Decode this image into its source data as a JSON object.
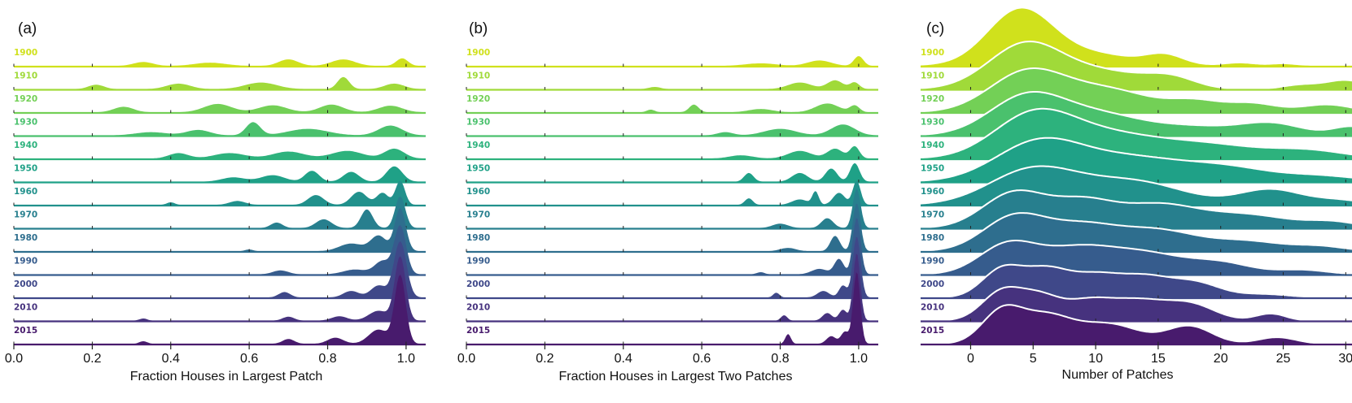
{
  "colors": [
    "#d0e11c",
    "#a0da39",
    "#73d056",
    "#4ac16d",
    "#2db27d",
    "#1fa187",
    "#21918c",
    "#277f8e",
    "#2e6e8e",
    "#365c8d",
    "#3f4889",
    "#46327e",
    "#481b6d"
  ],
  "chart_data": [
    {
      "type": "ridgeline",
      "panel": "(a)",
      "xlabel": "Fraction Houses in Largest Patch",
      "xlim": [
        0.0,
        1.05
      ],
      "xticks": [
        "0.0",
        "0.2",
        "0.4",
        "0.6",
        "0.8",
        "1.0"
      ],
      "tick_values": [
        0.0,
        0.2,
        0.4,
        0.6,
        0.8,
        1.0
      ],
      "series": [
        {
          "name": "1900",
          "peaks": [
            [
              0.33,
              0.025,
              0.18
            ],
            [
              0.5,
              0.04,
              0.15
            ],
            [
              0.7,
              0.025,
              0.3
            ],
            [
              0.84,
              0.03,
              0.3
            ],
            [
              0.99,
              0.015,
              0.35
            ]
          ]
        },
        {
          "name": "1910",
          "peaks": [
            [
              0.21,
              0.02,
              0.2
            ],
            [
              0.42,
              0.03,
              0.25
            ],
            [
              0.63,
              0.04,
              0.3
            ],
            [
              0.84,
              0.015,
              0.55
            ],
            [
              0.97,
              0.025,
              0.25
            ]
          ]
        },
        {
          "name": "1920",
          "peaks": [
            [
              0.28,
              0.025,
              0.25
            ],
            [
              0.52,
              0.035,
              0.38
            ],
            [
              0.66,
              0.035,
              0.32
            ],
            [
              0.81,
              0.03,
              0.35
            ],
            [
              0.96,
              0.03,
              0.3
            ]
          ]
        },
        {
          "name": "1930",
          "peaks": [
            [
              0.35,
              0.04,
              0.15
            ],
            [
              0.47,
              0.03,
              0.25
            ],
            [
              0.61,
              0.018,
              0.6
            ],
            [
              0.75,
              0.05,
              0.3
            ],
            [
              0.96,
              0.03,
              0.45
            ]
          ]
        },
        {
          "name": "1940",
          "peaks": [
            [
              0.42,
              0.025,
              0.25
            ],
            [
              0.55,
              0.04,
              0.25
            ],
            [
              0.7,
              0.04,
              0.32
            ],
            [
              0.85,
              0.04,
              0.35
            ],
            [
              0.97,
              0.025,
              0.45
            ]
          ]
        },
        {
          "name": "1950",
          "peaks": [
            [
              0.56,
              0.03,
              0.2
            ],
            [
              0.66,
              0.03,
              0.3
            ],
            [
              0.76,
              0.018,
              0.5
            ],
            [
              0.86,
              0.02,
              0.45
            ],
            [
              0.97,
              0.02,
              0.7
            ]
          ]
        },
        {
          "name": "1960",
          "peaks": [
            [
              0.4,
              0.01,
              0.12
            ],
            [
              0.57,
              0.02,
              0.18
            ],
            [
              0.77,
              0.02,
              0.45
            ],
            [
              0.88,
              0.02,
              0.6
            ],
            [
              0.94,
              0.015,
              0.55
            ],
            [
              0.985,
              0.012,
              1.1
            ]
          ]
        },
        {
          "name": "1970",
          "peaks": [
            [
              0.67,
              0.015,
              0.25
            ],
            [
              0.79,
              0.02,
              0.4
            ],
            [
              0.9,
              0.015,
              0.85
            ],
            [
              0.985,
              0.013,
              1.45
            ]
          ]
        },
        {
          "name": "1980",
          "peaks": [
            [
              0.6,
              0.01,
              0.08
            ],
            [
              0.86,
              0.03,
              0.35
            ],
            [
              0.93,
              0.02,
              0.7
            ],
            [
              0.985,
              0.014,
              1.95
            ]
          ]
        },
        {
          "name": "1990",
          "peaks": [
            [
              0.68,
              0.02,
              0.18
            ],
            [
              0.87,
              0.03,
              0.22
            ],
            [
              0.94,
              0.02,
              0.6
            ],
            [
              0.985,
              0.015,
              2.2
            ]
          ]
        },
        {
          "name": "2000",
          "peaks": [
            [
              0.69,
              0.015,
              0.25
            ],
            [
              0.86,
              0.02,
              0.3
            ],
            [
              0.93,
              0.02,
              0.55
            ],
            [
              0.985,
              0.016,
              2.55
            ]
          ]
        },
        {
          "name": "2010",
          "peaks": [
            [
              0.33,
              0.01,
              0.1
            ],
            [
              0.7,
              0.015,
              0.18
            ],
            [
              0.83,
              0.02,
              0.2
            ],
            [
              0.93,
              0.025,
              0.45
            ],
            [
              0.985,
              0.014,
              2.9
            ]
          ]
        },
        {
          "name": "2015",
          "peaks": [
            [
              0.33,
              0.01,
              0.12
            ],
            [
              0.7,
              0.015,
              0.22
            ],
            [
              0.82,
              0.02,
              0.28
            ],
            [
              0.93,
              0.025,
              0.65
            ],
            [
              0.985,
              0.014,
              3.1
            ]
          ]
        }
      ]
    },
    {
      "type": "ridgeline",
      "panel": "(b)",
      "xlabel": "Fraction Houses in Largest Two Patches",
      "xlim": [
        0.0,
        1.05
      ],
      "xticks": [
        "0.0",
        "0.2",
        "0.4",
        "0.6",
        "0.8",
        "1.0"
      ],
      "tick_values": [
        0.0,
        0.2,
        0.4,
        0.6,
        0.8,
        1.0
      ],
      "series": [
        {
          "name": "1900",
          "peaks": [
            [
              0.75,
              0.04,
              0.12
            ],
            [
              0.9,
              0.03,
              0.25
            ],
            [
              1.0,
              0.012,
              0.45
            ]
          ]
        },
        {
          "name": "1910",
          "peaks": [
            [
              0.48,
              0.015,
              0.1
            ],
            [
              0.85,
              0.03,
              0.3
            ],
            [
              0.94,
              0.02,
              0.4
            ],
            [
              0.99,
              0.012,
              0.3
            ]
          ]
        },
        {
          "name": "1920",
          "peaks": [
            [
              0.47,
              0.01,
              0.12
            ],
            [
              0.58,
              0.012,
              0.35
            ],
            [
              0.75,
              0.03,
              0.15
            ],
            [
              0.92,
              0.03,
              0.4
            ],
            [
              0.99,
              0.012,
              0.3
            ]
          ]
        },
        {
          "name": "1930",
          "peaks": [
            [
              0.66,
              0.02,
              0.15
            ],
            [
              0.8,
              0.04,
              0.3
            ],
            [
              0.96,
              0.03,
              0.5
            ]
          ]
        },
        {
          "name": "1940",
          "peaks": [
            [
              0.7,
              0.03,
              0.15
            ],
            [
              0.85,
              0.03,
              0.35
            ],
            [
              0.94,
              0.02,
              0.45
            ],
            [
              0.99,
              0.012,
              0.55
            ]
          ]
        },
        {
          "name": "1950",
          "peaks": [
            [
              0.72,
              0.012,
              0.4
            ],
            [
              0.85,
              0.02,
              0.4
            ],
            [
              0.93,
              0.015,
              0.6
            ],
            [
              0.99,
              0.012,
              0.85
            ]
          ]
        },
        {
          "name": "1960",
          "peaks": [
            [
              0.72,
              0.01,
              0.3
            ],
            [
              0.85,
              0.02,
              0.25
            ],
            [
              0.89,
              0.008,
              0.6
            ],
            [
              0.95,
              0.015,
              0.55
            ],
            [
              0.995,
              0.01,
              1.1
            ]
          ]
        },
        {
          "name": "1970",
          "peaks": [
            [
              0.8,
              0.02,
              0.2
            ],
            [
              0.92,
              0.015,
              0.45
            ],
            [
              0.995,
              0.01,
              1.8
            ]
          ]
        },
        {
          "name": "1980",
          "peaks": [
            [
              0.82,
              0.02,
              0.15
            ],
            [
              0.94,
              0.012,
              0.7
            ],
            [
              0.995,
              0.01,
              2.2
            ]
          ]
        },
        {
          "name": "1990",
          "peaks": [
            [
              0.75,
              0.01,
              0.1
            ],
            [
              0.9,
              0.02,
              0.25
            ],
            [
              0.95,
              0.012,
              0.7
            ],
            [
              0.995,
              0.01,
              2.6
            ]
          ]
        },
        {
          "name": "2000",
          "peaks": [
            [
              0.79,
              0.008,
              0.22
            ],
            [
              0.91,
              0.015,
              0.3
            ],
            [
              0.96,
              0.01,
              0.55
            ],
            [
              0.995,
              0.01,
              2.8
            ]
          ]
        },
        {
          "name": "2010",
          "peaks": [
            [
              0.81,
              0.008,
              0.25
            ],
            [
              0.92,
              0.012,
              0.35
            ],
            [
              0.96,
              0.01,
              0.5
            ],
            [
              0.995,
              0.009,
              3.1
            ]
          ]
        },
        {
          "name": "2015",
          "peaks": [
            [
              0.82,
              0.007,
              0.45
            ],
            [
              0.93,
              0.012,
              0.35
            ],
            [
              0.965,
              0.01,
              0.55
            ],
            [
              0.995,
              0.009,
              3.3
            ]
          ]
        }
      ]
    },
    {
      "type": "ridgeline",
      "panel": "(c)",
      "xlabel": "Number of Patches",
      "xlim": [
        -4,
        30.5
      ],
      "xticks": [
        "0",
        "5",
        "10",
        "15",
        "20",
        "25",
        "30"
      ],
      "tick_values": [
        0,
        5,
        10,
        15,
        20,
        25,
        30
      ],
      "series": [
        {
          "name": "1900",
          "peaks": [
            [
              4,
              2.6,
              2.55
            ],
            [
              10,
              3,
              0.5
            ],
            [
              15.5,
              1.5,
              0.45
            ],
            [
              21.5,
              1.2,
              0.12
            ],
            [
              25,
              1,
              0.08
            ]
          ]
        },
        {
          "name": "1910",
          "peaks": [
            [
              4.5,
              3,
              2.1
            ],
            [
              11,
              3,
              0.7
            ],
            [
              16,
              2,
              0.5
            ],
            [
              26.5,
              1.5,
              0.2
            ],
            [
              30,
              1.5,
              0.4
            ]
          ]
        },
        {
          "name": "1920",
          "peaks": [
            [
              4.5,
              3,
              1.8
            ],
            [
              11,
              3.5,
              1.0
            ],
            [
              18,
              2,
              0.45
            ],
            [
              22.5,
              2,
              0.4
            ],
            [
              28.5,
              2,
              0.35
            ]
          ]
        },
        {
          "name": "1930",
          "peaks": [
            [
              4.5,
              3,
              1.75
            ],
            [
              10.5,
              3.5,
              0.9
            ],
            [
              18,
              3,
              0.35
            ],
            [
              24,
              2.5,
              0.55
            ],
            [
              30.5,
              1.5,
              0.4
            ]
          ]
        },
        {
          "name": "1940",
          "peaks": [
            [
              5,
              3.2,
              1.9
            ],
            [
              11,
              4,
              1.0
            ],
            [
              19,
              4,
              0.6
            ],
            [
              27,
              3,
              0.35
            ]
          ]
        },
        {
          "name": "1950",
          "peaks": [
            [
              5.5,
              3.5,
              1.8
            ],
            [
              13,
              4,
              1.0
            ],
            [
              20.5,
              3.5,
              0.6
            ],
            [
              28,
              3,
              0.25
            ]
          ]
        },
        {
          "name": "1960",
          "peaks": [
            [
              5,
              3.5,
              1.6
            ],
            [
              13,
              4,
              1.05
            ],
            [
              24,
              2.5,
              0.7
            ],
            [
              29.5,
              2,
              0.2
            ]
          ]
        },
        {
          "name": "1970",
          "peaks": [
            [
              3.5,
              2.5,
              1.6
            ],
            [
              9,
              2.5,
              1.15
            ],
            [
              15,
              3,
              1.0
            ],
            [
              22,
              3.5,
              0.6
            ],
            [
              29,
              2,
              0.25
            ]
          ]
        },
        {
          "name": "1980",
          "peaks": [
            [
              3.5,
              2.5,
              1.55
            ],
            [
              9,
              2.8,
              1.1
            ],
            [
              15,
              3,
              0.9
            ],
            [
              22,
              3,
              0.45
            ],
            [
              28,
              2,
              0.2
            ]
          ]
        },
        {
          "name": "1990",
          "peaks": [
            [
              3,
              2.3,
              1.35
            ],
            [
              8.5,
              2.8,
              1.1
            ],
            [
              14,
              3,
              0.9
            ],
            [
              20,
              2.5,
              0.5
            ],
            [
              26.5,
              2,
              0.2
            ]
          ]
        },
        {
          "name": "2000",
          "peaks": [
            [
              2.5,
              1.6,
              1.25
            ],
            [
              6,
              1.8,
              1.2
            ],
            [
              10,
              2,
              0.95
            ],
            [
              14,
              2,
              0.85
            ],
            [
              18,
              2,
              0.65
            ],
            [
              23.5,
              2,
              0.15
            ]
          ]
        },
        {
          "name": "2010",
          "peaks": [
            [
              2.5,
              1.6,
              1.3
            ],
            [
              5.5,
              1.6,
              1.0
            ],
            [
              9.5,
              2,
              0.9
            ],
            [
              13.5,
              2,
              0.8
            ],
            [
              17.5,
              2,
              0.75
            ],
            [
              24,
              1.2,
              0.32
            ]
          ]
        },
        {
          "name": "2015",
          "peaks": [
            [
              2.5,
              1.6,
              1.45
            ],
            [
              6,
              2,
              1.2
            ],
            [
              11,
              2.5,
              0.9
            ],
            [
              17.5,
              1.8,
              0.8
            ],
            [
              24.5,
              1.5,
              0.3
            ]
          ]
        }
      ]
    }
  ]
}
